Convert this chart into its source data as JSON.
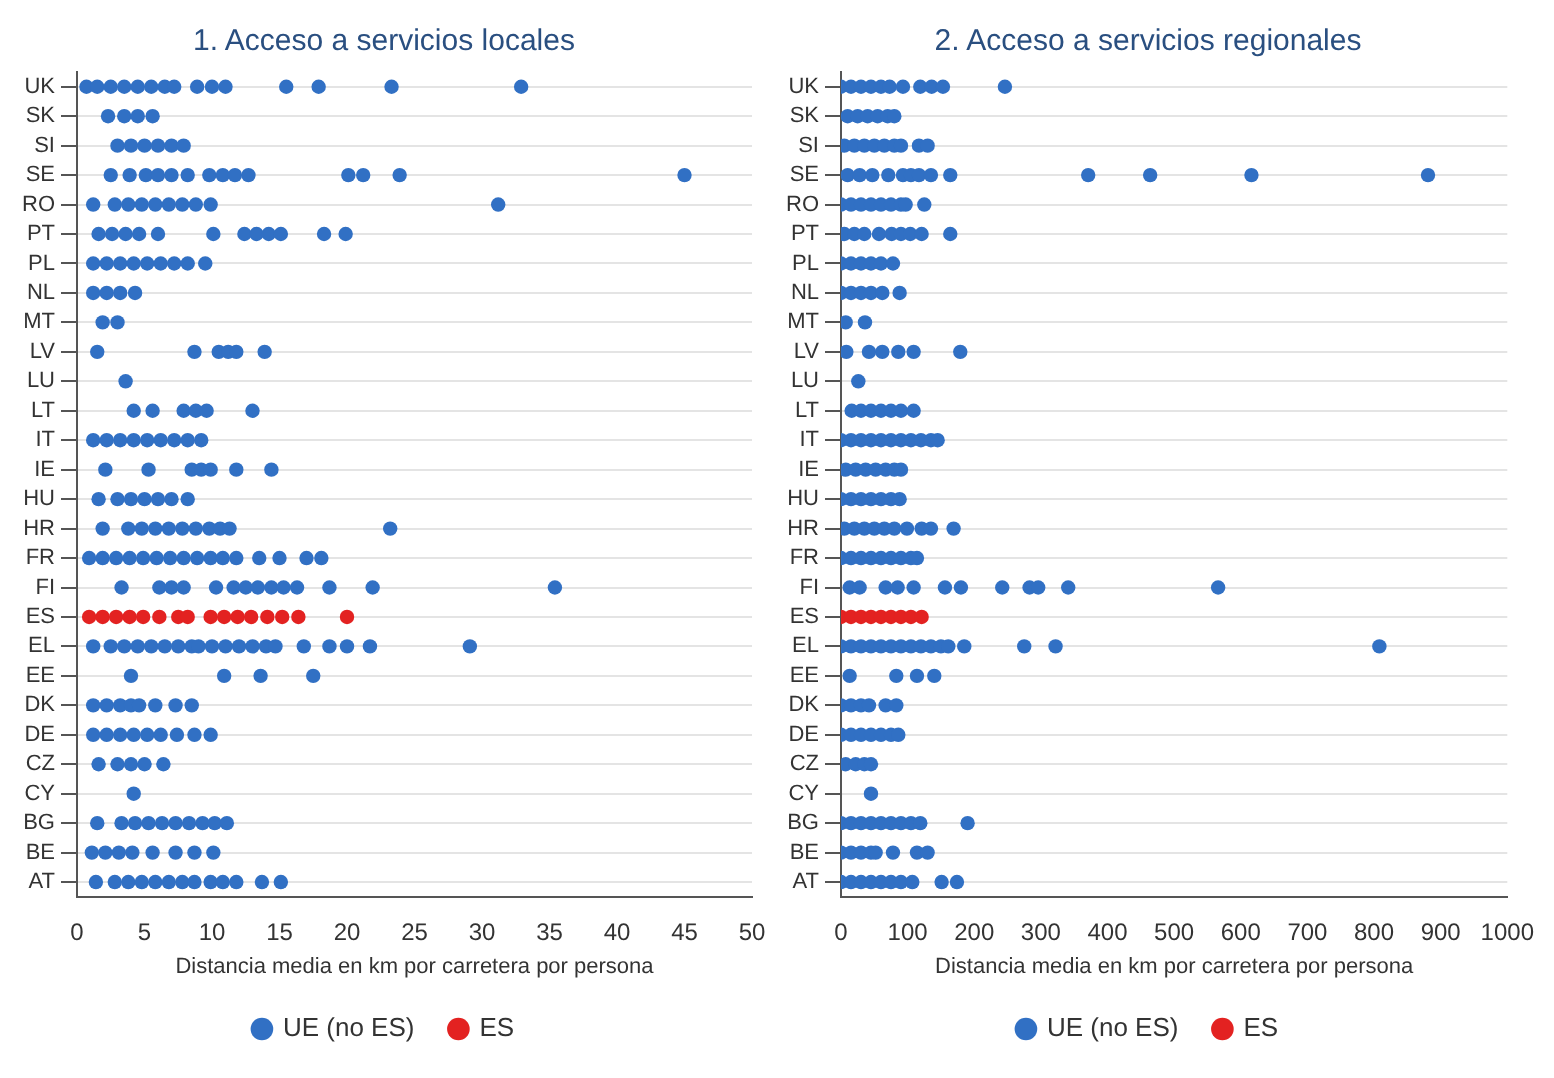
{
  "chart_data": [
    {
      "type": "scatter",
      "orientation": "horizontal",
      "title": "1. Acceso a servicios locales",
      "xlabel": "Distancia media en km por carretera por persona",
      "categories": [
        "UK",
        "SK",
        "SI",
        "SE",
        "RO",
        "PT",
        "PL",
        "NL",
        "MT",
        "LV",
        "LU",
        "LT",
        "IT",
        "IE",
        "HU",
        "HR",
        "FR",
        "FI",
        "ES",
        "EL",
        "EE",
        "DK",
        "DE",
        "CZ",
        "CY",
        "BG",
        "BE",
        "AT"
      ],
      "xlim": [
        0,
        50
      ],
      "xticks": [
        0,
        5,
        10,
        15,
        20,
        25,
        30,
        35,
        40,
        45,
        50
      ],
      "grid": "y",
      "legend": "bottom",
      "marker": "circle",
      "series": [
        {
          "name": "UE (no ES)",
          "color": "#3170c4",
          "x": [
            "UK",
            "UK",
            "UK",
            "UK",
            "UK",
            "UK",
            "UK",
            "UK",
            "UK",
            "UK",
            "UK",
            "UK",
            "UK",
            "UK",
            "UK",
            "SK",
            "SK",
            "SK",
            "SK",
            "SI",
            "SI",
            "SI",
            "SI",
            "SI",
            "SI",
            "SE",
            "SE",
            "SE",
            "SE",
            "SE",
            "SE",
            "SE",
            "SE",
            "SE",
            "SE",
            "SE",
            "SE",
            "SE",
            "SE",
            "RO",
            "RO",
            "RO",
            "RO",
            "RO",
            "RO",
            "RO",
            "RO",
            "RO",
            "RO",
            "PT",
            "PT",
            "PT",
            "PT",
            "PT",
            "PT",
            "PT",
            "PT",
            "PT",
            "PT",
            "PT",
            "PT",
            "PL",
            "PL",
            "PL",
            "PL",
            "PL",
            "PL",
            "PL",
            "PL",
            "PL",
            "NL",
            "NL",
            "NL",
            "NL",
            "MT",
            "MT",
            "LV",
            "LV",
            "LV",
            "LV",
            "LV",
            "LV",
            "LU",
            "LT",
            "LT",
            "LT",
            "LT",
            "LT",
            "LT",
            "IT",
            "IT",
            "IT",
            "IT",
            "IT",
            "IT",
            "IT",
            "IT",
            "IT",
            "IE",
            "IE",
            "IE",
            "IE",
            "IE",
            "IE",
            "IE",
            "HU",
            "HU",
            "HU",
            "HU",
            "HU",
            "HU",
            "HU",
            "HR",
            "HR",
            "HR",
            "HR",
            "HR",
            "HR",
            "HR",
            "HR",
            "HR",
            "HR",
            "HR",
            "FR",
            "FR",
            "FR",
            "FR",
            "FR",
            "FR",
            "FR",
            "FR",
            "FR",
            "FR",
            "FR",
            "FR",
            "FR",
            "FR",
            "FR",
            "FR",
            "FI",
            "FI",
            "FI",
            "FI",
            "FI",
            "FI",
            "FI",
            "FI",
            "FI",
            "FI",
            "FI",
            "FI",
            "FI",
            "FI",
            "EL",
            "EL",
            "EL",
            "EL",
            "EL",
            "EL",
            "EL",
            "EL",
            "EL",
            "EL",
            "EL",
            "EL",
            "EL",
            "EL",
            "EL",
            "EL",
            "EL",
            "EL",
            "EL",
            "EL",
            "EE",
            "EE",
            "EE",
            "EE",
            "DK",
            "DK",
            "DK",
            "DK",
            "DK",
            "DK",
            "DK",
            "DK",
            "DE",
            "DE",
            "DE",
            "DE",
            "DE",
            "DE",
            "DE",
            "DE",
            "DE",
            "CZ",
            "CZ",
            "CZ",
            "CZ",
            "CZ",
            "CY",
            "BG",
            "BG",
            "BG",
            "BG",
            "BG",
            "BG",
            "BG",
            "BG",
            "BG",
            "BG",
            "BE",
            "BE",
            "BE",
            "BE",
            "BE",
            "BE",
            "BE",
            "BE",
            "AT",
            "AT",
            "AT",
            "AT",
            "AT",
            "AT",
            "AT",
            "AT",
            "AT",
            "AT",
            "AT",
            "AT",
            "AT"
          ],
          "values": [
            0.7,
            1.5,
            2.5,
            3.5,
            4.5,
            5.5,
            6.5,
            7.2,
            8.9,
            10,
            11,
            15.5,
            17.9,
            23.3,
            32.9,
            2.3,
            3.5,
            4.5,
            5.6,
            3,
            4,
            5,
            6,
            7,
            7.9,
            2.5,
            3.9,
            5.1,
            6,
            7,
            8.2,
            9.8,
            10.8,
            11.7,
            12.7,
            20.1,
            21.2,
            23.9,
            45,
            1.2,
            2.8,
            3.8,
            4.8,
            5.8,
            6.8,
            7.8,
            8.8,
            9.9,
            31.2,
            1.6,
            2.6,
            3.6,
            4.6,
            6,
            10.1,
            12.4,
            13.3,
            14.2,
            15.1,
            18.3,
            19.9,
            1.2,
            2.2,
            3.2,
            4.2,
            5.2,
            6.2,
            7.2,
            8.2,
            9.5,
            1.2,
            2.2,
            3.2,
            4.3,
            1.9,
            3,
            1.5,
            8.7,
            10.5,
            11.2,
            11.8,
            13.9,
            3.6,
            4.2,
            5.6,
            7.9,
            8.8,
            9.6,
            13,
            1.2,
            2.2,
            3.2,
            4.2,
            5.2,
            6.2,
            7.2,
            8.2,
            9.2,
            2.1,
            5.3,
            8.5,
            9.2,
            9.9,
            11.8,
            14.4,
            1.6,
            3,
            4,
            5,
            6,
            7,
            8.2,
            1.9,
            3.8,
            4.8,
            5.8,
            6.8,
            7.8,
            8.8,
            9.8,
            10.6,
            11.3,
            23.2,
            0.9,
            1.9,
            2.9,
            3.9,
            4.9,
            5.9,
            6.9,
            7.9,
            8.9,
            9.9,
            10.8,
            11.8,
            13.5,
            15,
            17,
            18.1,
            3.3,
            6.1,
            7,
            7.9,
            10.3,
            11.6,
            12.5,
            13.4,
            14.4,
            15.3,
            16.3,
            18.7,
            21.9,
            35.4,
            1.2,
            2.5,
            3.5,
            4.5,
            5.5,
            6.5,
            7.5,
            8.5,
            9,
            10,
            11,
            12,
            13,
            14,
            14.7,
            16.8,
            18.7,
            20,
            21.7,
            29.1,
            4,
            10.9,
            13.6,
            17.5,
            1.2,
            2.2,
            3.2,
            4,
            4.6,
            5.8,
            7.3,
            8.5,
            1.2,
            2.2,
            3.2,
            4.2,
            5.2,
            6.2,
            7.4,
            8.7,
            9.9,
            1.6,
            3,
            4,
            5,
            6.4,
            4.2,
            1.5,
            3.3,
            4.3,
            5.3,
            6.3,
            7.3,
            8.3,
            9.3,
            10.2,
            11.1,
            1.1,
            2.1,
            3.1,
            4.1,
            5.6,
            7.3,
            8.7,
            10.1,
            1.4,
            2.8,
            3.8,
            4.8,
            5.8,
            6.8,
            7.8,
            8.7,
            9.9,
            10.8,
            11.8,
            13.7,
            15.1
          ]
        },
        {
          "name": "ES",
          "color": "#e32221",
          "x": [
            "ES",
            "ES",
            "ES",
            "ES",
            "ES",
            "ES",
            "ES",
            "ES",
            "ES",
            "ES",
            "ES",
            "ES",
            "ES",
            "ES",
            "ES",
            "ES"
          ],
          "values": [
            0.9,
            1.9,
            2.9,
            3.9,
            4.9,
            6.1,
            7.5,
            8.2,
            9.9,
            10.9,
            11.9,
            12.9,
            14.1,
            15.2,
            16.4,
            20
          ]
        }
      ]
    },
    {
      "type": "scatter",
      "orientation": "horizontal",
      "title": "2. Acceso a servicios regionales",
      "xlabel": "Distancia media en km por carretera por persona",
      "categories": [
        "UK",
        "SK",
        "SI",
        "SE",
        "RO",
        "PT",
        "PL",
        "NL",
        "MT",
        "LV",
        "LU",
        "LT",
        "IT",
        "IE",
        "HU",
        "HR",
        "FR",
        "FI",
        "ES",
        "EL",
        "EE",
        "DK",
        "DE",
        "CZ",
        "CY",
        "BG",
        "BE",
        "AT"
      ],
      "xlim": [
        0,
        1000
      ],
      "xticks": [
        0,
        100,
        200,
        300,
        400,
        500,
        600,
        700,
        800,
        900,
        1000
      ],
      "grid": "y",
      "legend": "bottom",
      "marker": "circle",
      "series": [
        {
          "name": "UE (no ES)",
          "color": "#3170c4",
          "x": [
            "UK",
            "UK",
            "UK",
            "UK",
            "UK",
            "UK",
            "UK",
            "UK",
            "UK",
            "UK",
            "UK",
            "SK",
            "SK",
            "SK",
            "SK",
            "SK",
            "SK",
            "SI",
            "SI",
            "SI",
            "SI",
            "SI",
            "SI",
            "SI",
            "SI",
            "SI",
            "SE",
            "SE",
            "SE",
            "SE",
            "SE",
            "SE",
            "SE",
            "SE",
            "SE",
            "SE",
            "SE",
            "SE",
            "SE",
            "RO",
            "RO",
            "RO",
            "RO",
            "RO",
            "RO",
            "RO",
            "RO",
            "RO",
            "PT",
            "PT",
            "PT",
            "PT",
            "PT",
            "PT",
            "PT",
            "PT",
            "PT",
            "PL",
            "PL",
            "PL",
            "PL",
            "PL",
            "PL",
            "NL",
            "NL",
            "NL",
            "NL",
            "NL",
            "NL",
            "MT",
            "MT",
            "LV",
            "LV",
            "LV",
            "LV",
            "LV",
            "LV",
            "LU",
            "LT",
            "LT",
            "LT",
            "LT",
            "LT",
            "LT",
            "LT",
            "IT",
            "IT",
            "IT",
            "IT",
            "IT",
            "IT",
            "IT",
            "IT",
            "IT",
            "IT",
            "IT",
            "IE",
            "IE",
            "IE",
            "IE",
            "IE",
            "IE",
            "IE",
            "HU",
            "HU",
            "HU",
            "HU",
            "HU",
            "HU",
            "HU",
            "HR",
            "HR",
            "HR",
            "HR",
            "HR",
            "HR",
            "HR",
            "HR",
            "HR",
            "HR",
            "FR",
            "FR",
            "FR",
            "FR",
            "FR",
            "FR",
            "FR",
            "FR",
            "FR",
            "FI",
            "FI",
            "FI",
            "FI",
            "FI",
            "FI",
            "FI",
            "FI",
            "FI",
            "FI",
            "FI",
            "FI",
            "EL",
            "EL",
            "EL",
            "EL",
            "EL",
            "EL",
            "EL",
            "EL",
            "EL",
            "EL",
            "EL",
            "EL",
            "EL",
            "EL",
            "EL",
            "EL",
            "EE",
            "EE",
            "EE",
            "EE",
            "DK",
            "DK",
            "DK",
            "DK",
            "DK",
            "DK",
            "DE",
            "DE",
            "DE",
            "DE",
            "DE",
            "DE",
            "DE",
            "CZ",
            "CZ",
            "CZ",
            "CZ",
            "CY",
            "BG",
            "BG",
            "BG",
            "BG",
            "BG",
            "BG",
            "BG",
            "BG",
            "BG",
            "BG",
            "BE",
            "BE",
            "BE",
            "BE",
            "BE",
            "BE",
            "BE",
            "BE",
            "AT",
            "AT",
            "AT",
            "AT",
            "AT",
            "AT",
            "AT",
            "AT",
            "AT",
            "AT"
          ],
          "values": [
            0,
            15,
            30,
            45,
            60,
            73,
            93,
            119,
            136,
            153,
            246,
            10,
            25,
            40,
            55,
            70,
            80,
            5,
            20,
            35,
            50,
            65,
            80,
            90,
            117,
            130,
            10,
            28,
            47,
            71,
            93,
            105,
            117,
            135,
            164,
            371,
            464,
            616,
            881,
            0,
            15,
            30,
            45,
            60,
            75,
            90,
            97,
            125,
            5,
            20,
            35,
            57,
            76,
            90,
            104,
            121,
            164,
            0,
            15,
            30,
            45,
            60,
            78,
            0,
            15,
            30,
            45,
            62,
            88,
            7,
            36,
            8,
            42,
            62,
            86,
            109,
            179,
            26,
            16,
            30,
            45,
            60,
            75,
            90,
            109,
            0,
            15,
            30,
            45,
            60,
            75,
            90,
            105,
            120,
            135,
            145,
            7,
            22,
            37,
            52,
            67,
            80,
            90,
            0,
            15,
            30,
            45,
            60,
            75,
            88,
            5,
            20,
            35,
            50,
            65,
            80,
            99,
            121,
            135,
            169,
            0,
            15,
            30,
            45,
            60,
            75,
            90,
            105,
            114,
            13,
            28,
            67,
            85,
            109,
            156,
            180,
            242,
            283,
            296,
            341,
            566,
            0,
            15,
            30,
            45,
            60,
            75,
            90,
            105,
            120,
            135,
            150,
            161,
            185,
            275,
            322,
            808,
            13,
            83,
            114,
            140,
            0,
            15,
            30,
            42,
            67,
            83,
            0,
            15,
            30,
            45,
            60,
            75,
            86,
            7,
            22,
            35,
            45,
            45,
            0,
            15,
            30,
            45,
            60,
            75,
            90,
            105,
            119,
            190,
            0,
            15,
            30,
            45,
            52,
            78,
            114,
            130,
            0,
            15,
            30,
            45,
            60,
            75,
            90,
            107,
            151,
            174
          ]
        },
        {
          "name": "ES",
          "color": "#e32221",
          "x": [
            "ES",
            "ES",
            "ES",
            "ES",
            "ES",
            "ES",
            "ES",
            "ES",
            "ES"
          ],
          "values": [
            0,
            15,
            30,
            45,
            60,
            75,
            90,
            105,
            121
          ]
        }
      ]
    }
  ]
}
